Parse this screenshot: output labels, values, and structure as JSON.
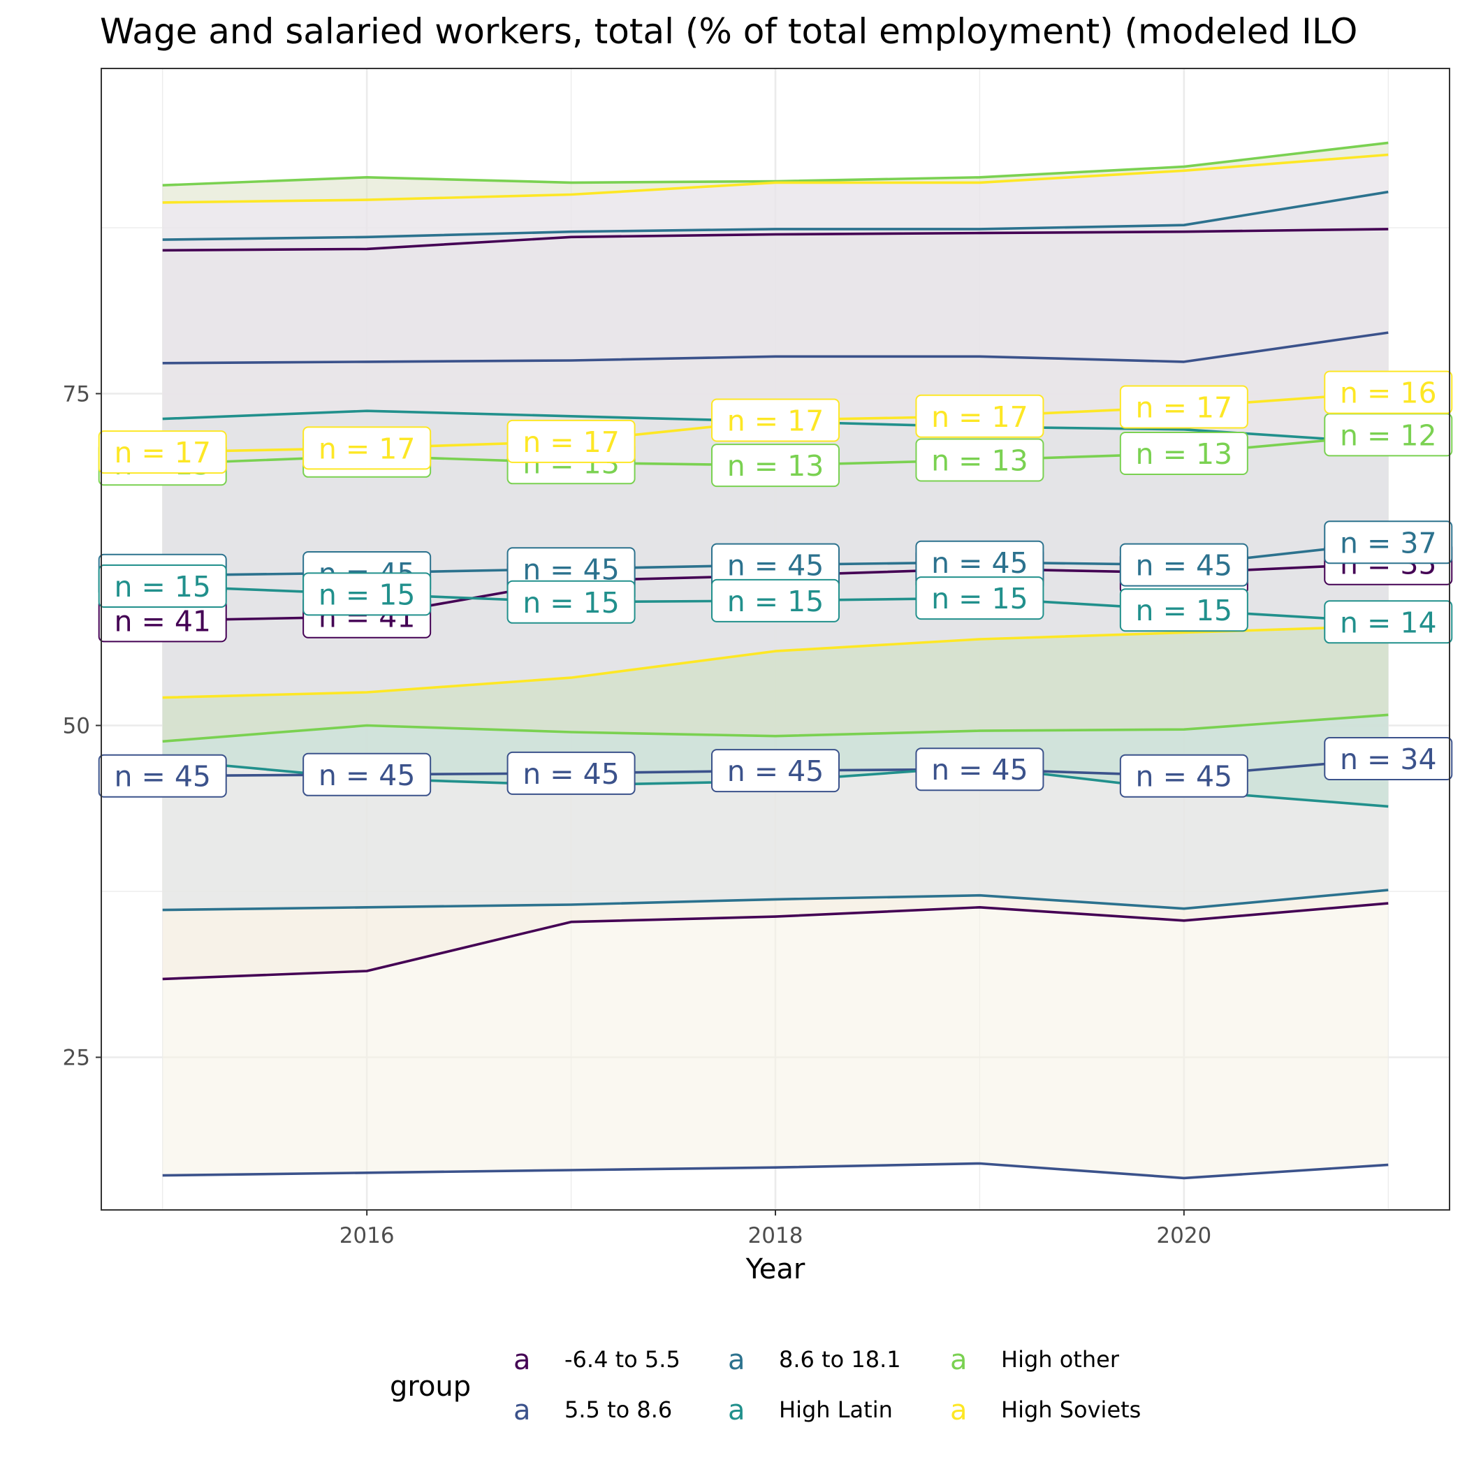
{
  "chart_data": {
    "type": "line",
    "title": "Wage and salaried workers, total (% of total employment) (modeled ILO",
    "xlabel": "Year",
    "ylabel": "",
    "x": [
      2015,
      2016,
      2017,
      2018,
      2019,
      2020,
      2021
    ],
    "xlim": [
      2014.7,
      2021.3
    ],
    "ylim": [
      13.5,
      99.5
    ],
    "x_ticks": [
      2016,
      2018,
      2020
    ],
    "y_ticks": [
      25,
      50,
      75
    ],
    "grid": true,
    "legend": {
      "title": "group",
      "position": "bottom",
      "key_glyph": "a",
      "entries": [
        "-6.4 to 5.5",
        "5.5 to 8.6",
        "8.6 to 18.1",
        "High Latin",
        "High other",
        "High Soviets"
      ]
    },
    "series": [
      {
        "name": "-6.4 to 5.5",
        "color": "#440154",
        "band_fill": "#f3e6d8",
        "mean": [
          57.9,
          58.2,
          60.9,
          61.3,
          61.8,
          61.5,
          62.2
        ],
        "upper": [
          85.8,
          85.9,
          86.8,
          87.0,
          87.1,
          87.2,
          87.4
        ],
        "lower": [
          30.9,
          31.5,
          35.2,
          35.6,
          36.3,
          35.3,
          36.6
        ],
        "n": [
          "n = 41",
          "n = 41",
          "n = 41",
          "n = 41",
          "n = 41",
          "n = 41",
          "n = 35"
        ]
      },
      {
        "name": "5.5 to 8.6",
        "color": "#3b528b",
        "band_fill": "#f6f3e5",
        "mean": [
          46.2,
          46.3,
          46.4,
          46.6,
          46.7,
          46.2,
          47.5
        ],
        "upper": [
          77.3,
          77.4,
          77.5,
          77.8,
          77.8,
          77.4,
          79.6
        ],
        "lower": [
          16.1,
          16.3,
          16.5,
          16.7,
          17.0,
          15.9,
          16.9
        ],
        "n": [
          "n = 45",
          "n = 45",
          "n = 45",
          "n = 45",
          "n = 45",
          "n = 45",
          "n = 34"
        ]
      },
      {
        "name": "8.6 to 18.1",
        "color": "#21908c",
        "line_color": "#2c728e",
        "band_fill": "#dfe4ea",
        "mean": [
          61.3,
          61.5,
          61.8,
          62.1,
          62.3,
          62.1,
          63.8
        ],
        "upper": [
          86.6,
          86.8,
          87.2,
          87.4,
          87.4,
          87.7,
          90.2
        ],
        "lower": [
          36.1,
          36.3,
          36.5,
          36.9,
          37.2,
          36.2,
          37.6
        ],
        "n": [
          "n = 45",
          "n = 45",
          "n = 45",
          "n = 45",
          "n = 45",
          "n = 45",
          "n = 37"
        ]
      },
      {
        "name": "High Latin",
        "color": "#21908c",
        "band_fill": "#bedccf",
        "mean": [
          60.5,
          59.9,
          59.3,
          59.4,
          59.6,
          58.7,
          57.8
        ],
        "upper": [
          73.1,
          73.7,
          73.3,
          72.9,
          72.5,
          72.3,
          71.3
        ],
        "lower": [
          47.4,
          46.0,
          45.5,
          45.8,
          46.9,
          45.1,
          43.9
        ],
        "n": [
          "n = 15",
          "n = 15",
          "n = 15",
          "n = 15",
          "n = 15",
          "n = 15",
          "n = 14"
        ]
      },
      {
        "name": "High other",
        "color": "#7ad151",
        "band_fill": "#dde1c7",
        "mean": [
          69.7,
          70.3,
          69.8,
          69.6,
          70.0,
          70.5,
          71.9
        ],
        "upper": [
          90.7,
          91.3,
          90.9,
          91.0,
          91.3,
          92.1,
          93.9
        ],
        "lower": [
          48.8,
          50.0,
          49.5,
          49.2,
          49.6,
          49.7,
          50.8
        ],
        "n": [
          "n = 13",
          "n = 13",
          "n = 13",
          "n = 13",
          "n = 13",
          "n = 13",
          "n = 12"
        ]
      },
      {
        "name": "High Soviets",
        "color": "#fde725",
        "band_fill": "#efe6fa",
        "mean": [
          70.6,
          70.9,
          71.4,
          73.0,
          73.3,
          74.0,
          75.1
        ],
        "upper": [
          89.4,
          89.6,
          90.0,
          90.9,
          90.9,
          91.8,
          93.0
        ],
        "lower": [
          52.1,
          52.5,
          53.6,
          55.6,
          56.5,
          57.0,
          57.5
        ],
        "n": [
          "n = 17",
          "n = 17",
          "n = 17",
          "n = 17",
          "n = 17",
          "n = 17",
          "n = 16"
        ]
      }
    ]
  }
}
